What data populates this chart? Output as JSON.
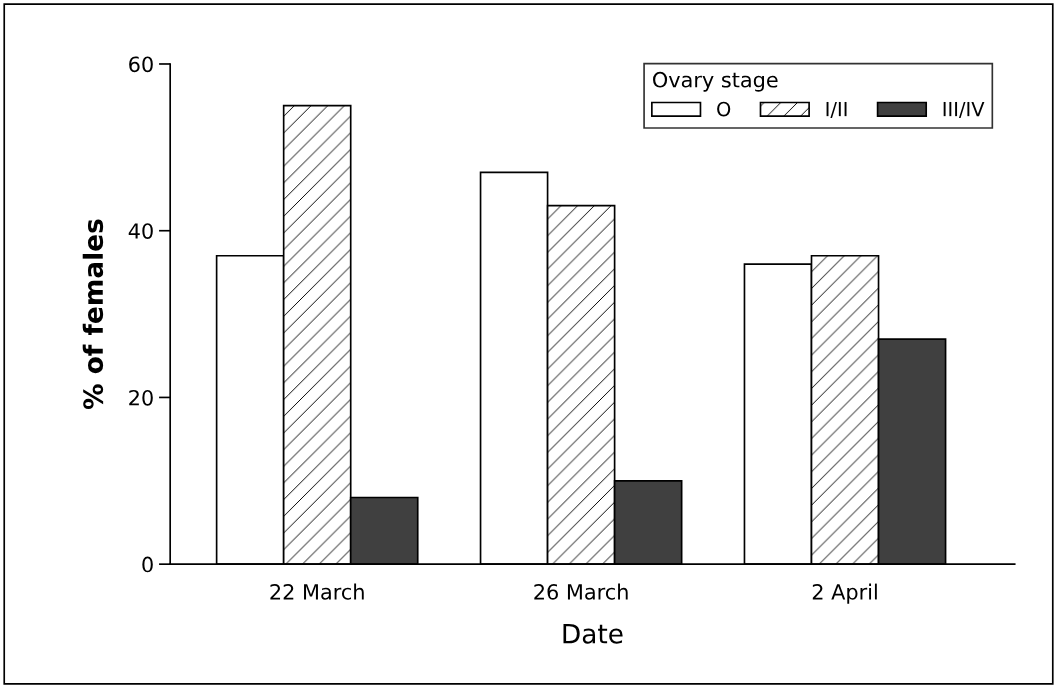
{
  "chart_data": {
    "type": "bar",
    "xlabel": "Date",
    "ylabel": "% of females",
    "legend_title": "Ovary stage",
    "categories": [
      "22 March",
      "26 March",
      "2 April"
    ],
    "series": [
      {
        "name": "O",
        "color": "#ffffff",
        "values": [
          37,
          47,
          36
        ]
      },
      {
        "name": "I/II",
        "color": "#ffffff",
        "values": [
          55,
          43,
          37
        ]
      },
      {
        "name": "III/IV",
        "color": "#404040",
        "values": [
          8,
          10,
          27
        ]
      }
    ],
    "ylim": [
      0,
      60
    ],
    "yticks": [
      0,
      20,
      40,
      60
    ],
    "grid": false,
    "legend": "top right"
  }
}
